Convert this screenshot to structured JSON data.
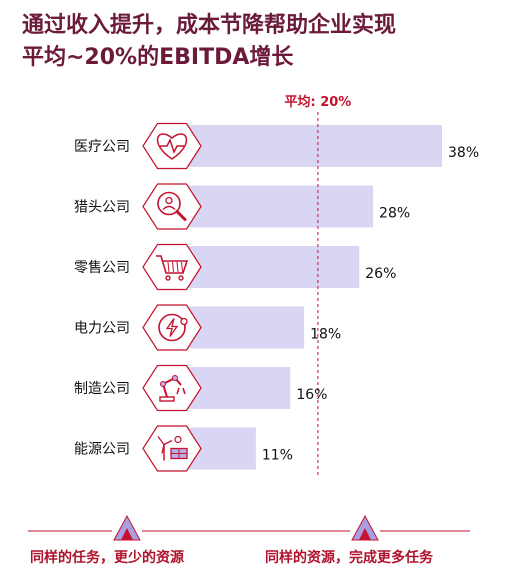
{
  "title": {
    "line1": "通过收入提升，成本节降帮助企业实现",
    "line2": "平均~20%的EBITDA增长"
  },
  "average_label": "平均: 20%",
  "colors": {
    "title": "#6b1a3a",
    "bar": "#d8d6f3",
    "accent": "#c4122f",
    "hexagon_stroke": "#c4122f",
    "icon": "#c4122f",
    "arrow_fill": "#a79fe0"
  },
  "chart_data": {
    "type": "bar",
    "orientation": "horizontal",
    "categories": [
      "医疗公司",
      "猎头公司",
      "零售公司",
      "电力公司",
      "制造公司",
      "能源公司"
    ],
    "values": [
      38,
      28,
      26,
      18,
      16,
      11
    ],
    "value_labels": [
      "38%",
      "28%",
      "26%",
      "18%",
      "16%",
      "11%"
    ],
    "icons": [
      "heartbeat-icon",
      "recruiter-search-icon",
      "shopping-cart-icon",
      "power-icon",
      "robot-arm-icon",
      "wind-solar-icon"
    ],
    "reference_line": {
      "value": 20,
      "label": "平均: 20%"
    },
    "xlim": [
      0,
      38
    ]
  },
  "footer": {
    "left_label": "同样的任务，更少的资源",
    "right_label": "同样的资源，完成更多任务"
  }
}
